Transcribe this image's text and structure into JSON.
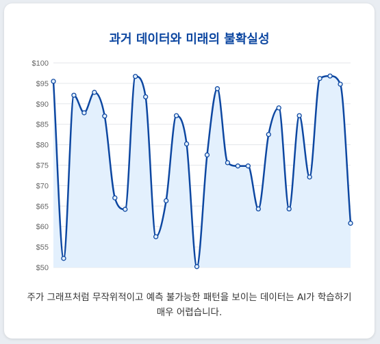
{
  "chart_data": {
    "type": "line",
    "title": "과거 데이터와 미래의 불확실성",
    "caption": "주가 그래프처럼 무작위적이고 예측 불가능한 패턴을 보이는 데이터는 AI가 학습하기 매우 어렵습니다.",
    "xlabel": "",
    "ylabel": "",
    "ylim": [
      50,
      100
    ],
    "y_ticks": [
      "$50",
      "$55",
      "$60",
      "$65",
      "$70",
      "$75",
      "$80",
      "$85",
      "$90",
      "$95",
      "$100"
    ],
    "y_tick_values": [
      50,
      55,
      60,
      65,
      70,
      75,
      80,
      85,
      90,
      95,
      100
    ],
    "grid": true,
    "legend": "none",
    "fill": true,
    "curve": "smooth",
    "colors": {
      "line": "#0d47a1",
      "fill": "#e3f0fd",
      "grid": "#e3e6ea",
      "title": "#0d47a1"
    },
    "values": [
      95.5,
      52.2,
      92.1,
      87.8,
      92.8,
      87.0,
      67.0,
      64.2,
      96.7,
      91.7,
      57.5,
      66.3,
      87.1,
      80.2,
      50.2,
      77.5,
      93.7,
      75.6,
      74.8,
      74.8,
      64.3,
      82.5,
      89.0,
      64.3,
      87.1,
      72.1,
      96.2,
      96.8,
      94.8,
      60.8
    ]
  }
}
